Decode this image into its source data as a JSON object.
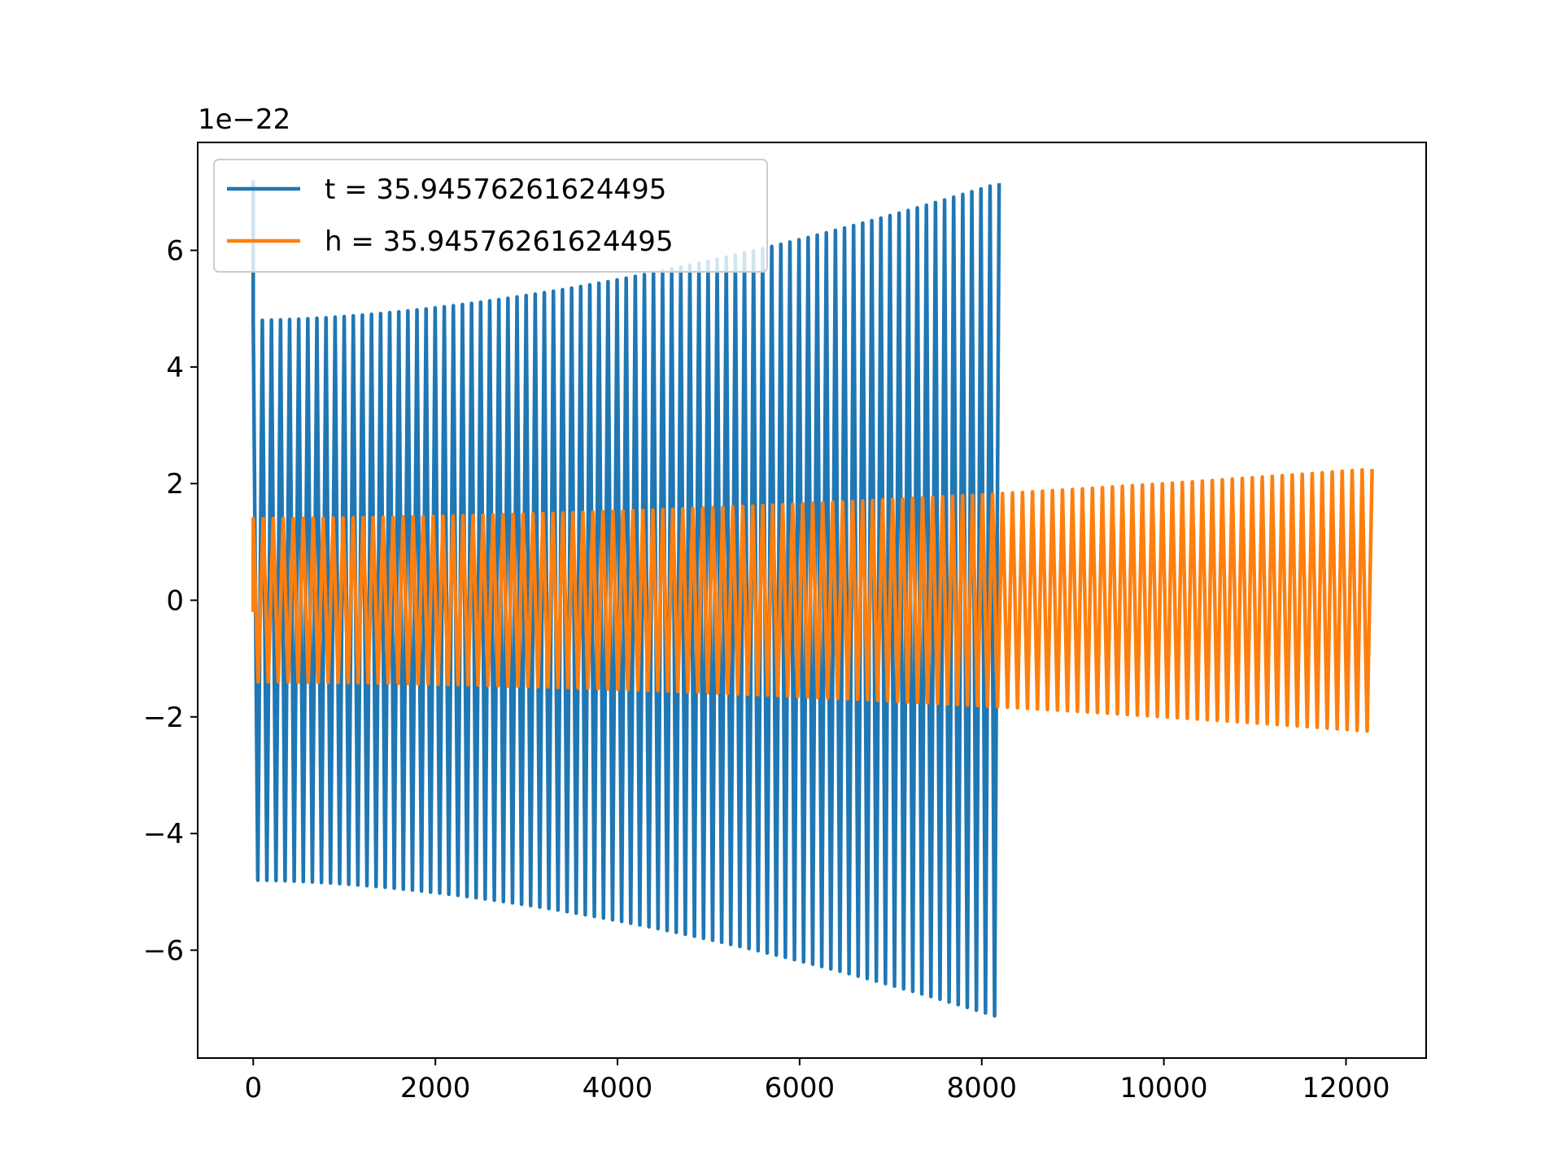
{
  "chart_data": {
    "type": "line",
    "title": "",
    "xlabel": "",
    "ylabel": "",
    "offset_label": "1e−22",
    "xlim": [
      -610,
      12880
    ],
    "ylim": [
      -7.85,
      7.85
    ],
    "x_ticks": [
      0,
      2000,
      4000,
      6000,
      8000,
      10000,
      12000
    ],
    "x_tick_labels": [
      "0",
      "2000",
      "4000",
      "6000",
      "8000",
      "10000",
      "12000"
    ],
    "y_ticks": [
      6,
      4,
      2,
      0,
      -2,
      -4,
      -6
    ],
    "y_tick_labels": [
      "6",
      "4",
      "2",
      "0",
      "−2",
      "−4",
      "−6"
    ],
    "grid": false,
    "legend_position": "upper left",
    "series": [
      {
        "name": "t = 35.94576261624495",
        "color": "#1f77b4",
        "x_start": 0,
        "x_end": 8191,
        "n_cycles": 82,
        "center": 0,
        "initial_spike": 7.2,
        "start_max": 4.8,
        "end_max": 7.15,
        "start_min": -4.8,
        "end_min": -7.15
      },
      {
        "name": "h = 35.94576261624495",
        "color": "#ff7f0e",
        "x_start": 0,
        "x_end": 12287,
        "n_cycles": 112,
        "center": 0,
        "initial_value": -0.2,
        "start_max": 1.4,
        "end_max": 2.25,
        "start_min": -1.4,
        "end_min": -2.25
      }
    ]
  }
}
